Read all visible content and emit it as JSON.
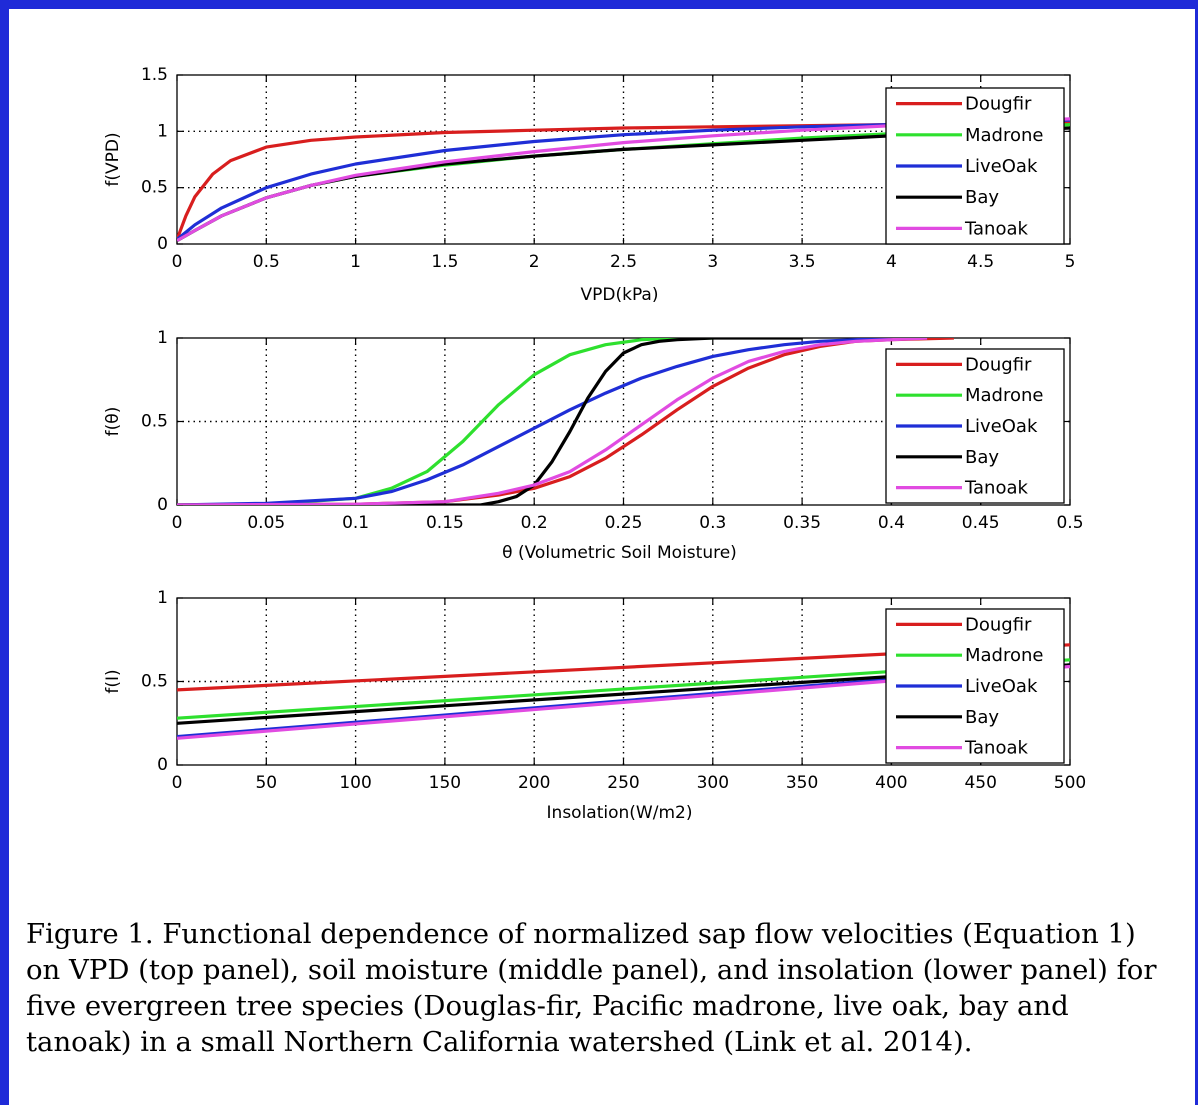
{
  "caption": "Figure 1.  Functional dependence of normalized sap flow velocities (Equation 1) on VPD (top panel), soil moisture (middle panel), and insolation (lower panel) for five evergreen tree species (Douglas-fir, Pacific madrone, live oak, bay and tanoak) in a small Northern California watershed (Link et al. 2014).",
  "colors": {
    "border": "#1f2bd8",
    "Dougfir": "#d81e1e",
    "Madrone": "#2ee02e",
    "LiveOak": "#1f2ed6",
    "Bay": "#000000",
    "Tanoak": "#e14be1"
  },
  "chart_data": [
    {
      "type": "line",
      "xlabel": "VPD(kPa)",
      "ylabel": "f(VPD)",
      "xlim": [
        0,
        5
      ],
      "ylim": [
        0,
        1.5
      ],
      "xticks": [
        "0",
        "0.5",
        "1",
        "1.5",
        "2",
        "2.5",
        "3",
        "3.5",
        "4",
        "4.5",
        "5"
      ],
      "yticks": [
        "0",
        "0.5",
        "1",
        "1.5"
      ],
      "grid": true,
      "legend": "top-right",
      "series": [
        {
          "name": "Dougfir",
          "x": [
            0,
            0.05,
            0.1,
            0.2,
            0.3,
            0.5,
            0.75,
            1,
            1.5,
            2,
            2.5,
            3,
            3.5,
            4,
            4.5,
            5
          ],
          "y": [
            0.04,
            0.25,
            0.42,
            0.62,
            0.74,
            0.86,
            0.92,
            0.95,
            0.99,
            1.01,
            1.03,
            1.04,
            1.05,
            1.06,
            1.07,
            1.08
          ]
        },
        {
          "name": "Madrone",
          "x": [
            0,
            0.1,
            0.25,
            0.5,
            0.75,
            1,
            1.5,
            2,
            2.5,
            3,
            3.5,
            4,
            4.5,
            5
          ],
          "y": [
            0.03,
            0.12,
            0.25,
            0.41,
            0.52,
            0.6,
            0.7,
            0.78,
            0.84,
            0.89,
            0.94,
            0.98,
            1.02,
            1.06
          ]
        },
        {
          "name": "LiveOak",
          "x": [
            0,
            0.1,
            0.25,
            0.5,
            0.75,
            1,
            1.5,
            2,
            2.5,
            3,
            3.5,
            4,
            4.5,
            5
          ],
          "y": [
            0.04,
            0.17,
            0.32,
            0.5,
            0.62,
            0.71,
            0.83,
            0.91,
            0.97,
            1.01,
            1.04,
            1.06,
            1.08,
            1.1
          ]
        },
        {
          "name": "Bay",
          "x": [
            0,
            0.1,
            0.25,
            0.5,
            0.75,
            1,
            1.5,
            2,
            2.5,
            3,
            3.5,
            4,
            4.5,
            5
          ],
          "y": [
            0.03,
            0.12,
            0.25,
            0.41,
            0.52,
            0.6,
            0.71,
            0.78,
            0.84,
            0.88,
            0.92,
            0.96,
            0.99,
            1.03
          ]
        },
        {
          "name": "Tanoak",
          "x": [
            0,
            0.1,
            0.25,
            0.5,
            0.75,
            1,
            1.5,
            2,
            2.5,
            3,
            3.5,
            4,
            4.5,
            5
          ],
          "y": [
            0.03,
            0.12,
            0.25,
            0.41,
            0.52,
            0.61,
            0.73,
            0.82,
            0.9,
            0.96,
            1.01,
            1.05,
            1.08,
            1.11
          ]
        }
      ]
    },
    {
      "type": "line",
      "xlabel": "θ (Volumetric Soil Moisture)",
      "ylabel": "f(θ)",
      "xlim": [
        0,
        0.5
      ],
      "ylim": [
        0,
        1
      ],
      "xticks": [
        "0",
        "0.05",
        "0.1",
        "0.15",
        "0.2",
        "0.25",
        "0.3",
        "0.35",
        "0.4",
        "0.45",
        "0.5"
      ],
      "yticks": [
        "0",
        "0.5",
        "1"
      ],
      "grid": true,
      "legend": "right",
      "series": [
        {
          "name": "Dougfir",
          "x": [
            0,
            0.1,
            0.15,
            0.18,
            0.2,
            0.22,
            0.24,
            0.26,
            0.28,
            0.3,
            0.32,
            0.34,
            0.36,
            0.38,
            0.4,
            0.435
          ],
          "y": [
            0,
            0.005,
            0.02,
            0.06,
            0.1,
            0.17,
            0.28,
            0.42,
            0.57,
            0.71,
            0.82,
            0.9,
            0.95,
            0.98,
            0.99,
            1.0
          ]
        },
        {
          "name": "Madrone",
          "x": [
            0,
            0.05,
            0.1,
            0.12,
            0.14,
            0.16,
            0.18,
            0.2,
            0.22,
            0.24,
            0.26,
            0.28,
            0.3
          ],
          "y": [
            0,
            0.005,
            0.04,
            0.1,
            0.2,
            0.38,
            0.6,
            0.78,
            0.9,
            0.96,
            0.99,
            1.0,
            1.0
          ]
        },
        {
          "name": "LiveOak",
          "x": [
            0,
            0.05,
            0.1,
            0.12,
            0.14,
            0.16,
            0.18,
            0.2,
            0.22,
            0.24,
            0.26,
            0.28,
            0.3,
            0.32,
            0.34,
            0.36,
            0.38,
            0.4
          ],
          "y": [
            0,
            0.01,
            0.04,
            0.08,
            0.15,
            0.24,
            0.35,
            0.46,
            0.57,
            0.67,
            0.76,
            0.83,
            0.89,
            0.93,
            0.96,
            0.98,
            0.99,
            1.0
          ]
        },
        {
          "name": "Bay",
          "x": [
            0,
            0.17,
            0.18,
            0.19,
            0.2,
            0.21,
            0.22,
            0.23,
            0.24,
            0.25,
            0.26,
            0.27,
            0.28,
            0.3,
            0.35
          ],
          "y": [
            0,
            0.0,
            0.02,
            0.05,
            0.12,
            0.26,
            0.44,
            0.64,
            0.8,
            0.91,
            0.96,
            0.98,
            0.99,
            1.0,
            1.0
          ]
        },
        {
          "name": "Tanoak",
          "x": [
            0,
            0.1,
            0.15,
            0.18,
            0.2,
            0.22,
            0.24,
            0.26,
            0.28,
            0.3,
            0.32,
            0.34,
            0.36,
            0.38,
            0.4,
            0.42
          ],
          "y": [
            0,
            0.005,
            0.02,
            0.07,
            0.12,
            0.2,
            0.33,
            0.48,
            0.63,
            0.76,
            0.86,
            0.92,
            0.96,
            0.98,
            0.99,
            1.0
          ]
        }
      ]
    },
    {
      "type": "line",
      "xlabel": "Insolation(W/m2)",
      "ylabel": "f(I)",
      "xlim": [
        0,
        500
      ],
      "ylim": [
        0,
        1
      ],
      "xticks": [
        "0",
        "50",
        "100",
        "150",
        "200",
        "250",
        "300",
        "350",
        "400",
        "450",
        "500"
      ],
      "yticks": [
        "0",
        "0.5",
        "1"
      ],
      "grid": true,
      "legend": "right",
      "series": [
        {
          "name": "Dougfir",
          "x": [
            0,
            500
          ],
          "y": [
            0.45,
            0.72
          ]
        },
        {
          "name": "Madrone",
          "x": [
            0,
            500
          ],
          "y": [
            0.28,
            0.63
          ]
        },
        {
          "name": "LiveOak",
          "x": [
            0,
            500
          ],
          "y": [
            0.17,
            0.6
          ]
        },
        {
          "name": "Bay",
          "x": [
            0,
            500
          ],
          "y": [
            0.25,
            0.6
          ]
        },
        {
          "name": "Tanoak",
          "x": [
            0,
            500
          ],
          "y": [
            0.16,
            0.59
          ]
        }
      ]
    }
  ]
}
